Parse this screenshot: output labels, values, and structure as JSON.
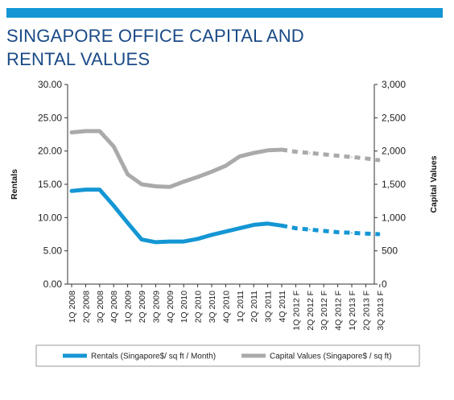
{
  "title": "SINGAPORE OFFICE CAPITAL AND\nRENTAL VALUES",
  "colors": {
    "title": "#1a4a86",
    "bar": "#1496d4",
    "rentals": "#1496d4",
    "capital": "#aaaaaa",
    "axis": "#333333"
  },
  "chart_data": {
    "type": "line",
    "title": "SINGAPORE OFFICE CAPITAL AND RENTAL VALUES",
    "ylabel": "Rentals",
    "y2label": "Capital Values",
    "ylim": [
      0,
      30
    ],
    "y2lim": [
      0,
      3000
    ],
    "yticks": [
      "0.00",
      "5.00",
      "10.00",
      "15.00",
      "20.00",
      "25.00",
      "30.00"
    ],
    "y2ticks": [
      "0",
      "500",
      "1,000",
      "1,500",
      "2,000",
      "2,500",
      "3,000"
    ],
    "categories": [
      "1Q 2008",
      "2Q 2008",
      "3Q 2008",
      "4Q 2008",
      "1Q 2009",
      "2Q 2009",
      "3Q 2009",
      "4Q 2009",
      "1Q 2010",
      "2Q 2010",
      "3Q 2010",
      "4Q 2010",
      "1Q 2011",
      "2Q 2011",
      "3Q 2011",
      "4Q 2011",
      "1Q 2012 F",
      "2Q 2012 F",
      "3Q 2012 F",
      "4Q 2012 F",
      "1Q 2013 F",
      "2Q 2013 F",
      "3Q 2013 F"
    ],
    "forecast_start_index": 15,
    "grid": false,
    "legend_position": "bottom",
    "series": [
      {
        "name": "Rentals (Singapore$/ sq ft / Month)",
        "axis": "left",
        "values": [
          14.0,
          14.2,
          14.2,
          11.8,
          9.2,
          6.7,
          6.3,
          6.4,
          6.4,
          6.8,
          7.4,
          7.9,
          8.4,
          8.9,
          9.1,
          8.8,
          8.4,
          8.2,
          8.0,
          7.8,
          7.7,
          7.6,
          7.5
        ]
      },
      {
        "name": "Capital Values (Singapore$ / sq ft)",
        "axis": "right",
        "values": [
          2280,
          2300,
          2300,
          2070,
          1650,
          1500,
          1470,
          1460,
          1540,
          1610,
          1690,
          1780,
          1920,
          1970,
          2010,
          2020,
          1990,
          1970,
          1950,
          1930,
          1910,
          1890,
          1860
        ]
      }
    ]
  }
}
